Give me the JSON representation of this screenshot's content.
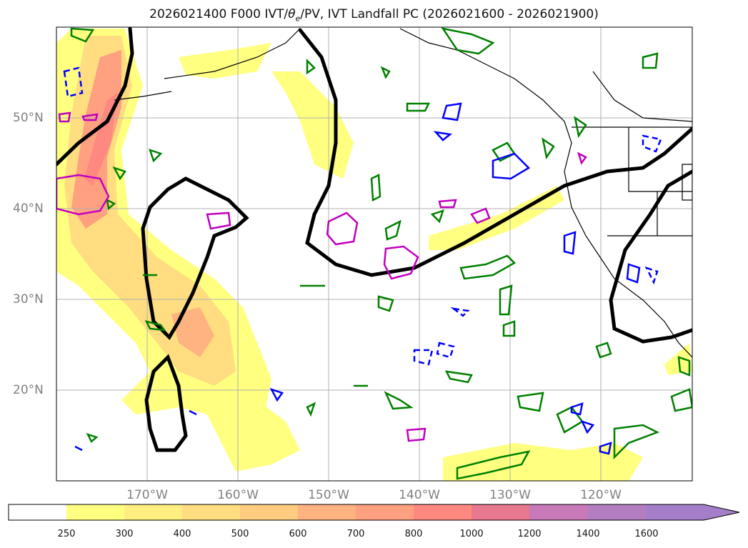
{
  "title": {
    "prefix": "2026021400 F000 IVT/",
    "theta": "θ",
    "theta_sub": "e",
    "suffix": "/PV, IVT Landfall PC (2026021600 - 2026021900)"
  },
  "map": {
    "lat_labels": [
      "50°N",
      "40°N",
      "30°N",
      "20°N"
    ],
    "lon_labels": [
      "170°W",
      "160°W",
      "150°W",
      "140°W",
      "130°W",
      "120°W"
    ],
    "extent": {
      "lon": [
        -180,
        -110
      ],
      "lat": [
        10,
        60
      ]
    },
    "gridlines": true
  },
  "colorbar": {
    "ticks": [
      "250",
      "300",
      "400",
      "500",
      "600",
      "700",
      "800",
      "1000",
      "1200",
      "1400",
      "1600"
    ],
    "colors": [
      "#ffffff",
      "#ffff80",
      "#ffee80",
      "#ffdd80",
      "#ffcc80",
      "#ffb380",
      "#ffa080",
      "#ff8880",
      "#e87890",
      "#c87ab8",
      "#a47ec8"
    ],
    "extend": "max"
  },
  "legend_colors": {
    "pc_contour": "#000000",
    "theta_e": "#008000",
    "pv_negative": "#0000ff",
    "pv_positive": "#c000c0"
  }
}
